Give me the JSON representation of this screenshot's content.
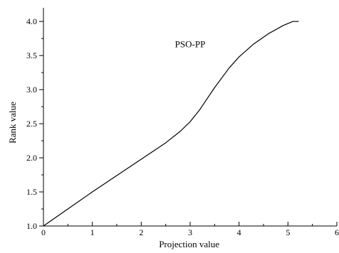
{
  "chart_data": {
    "type": "line",
    "title": "",
    "xlabel": "Projection value",
    "ylabel": "Rank value",
    "xlim": [
      0,
      6
    ],
    "ylim": [
      1.0,
      4.2
    ],
    "x_ticks": [
      "0",
      "1",
      "2",
      "3",
      "4",
      "5",
      "6"
    ],
    "y_ticks": [
      "1.0",
      "1.5",
      "2.0",
      "2.5",
      "3.0",
      "3.5",
      "4.0"
    ],
    "grid": false,
    "annotation": "PSO-PP",
    "series": [
      {
        "color": "#000000",
        "x": [
          0,
          0.5,
          1.0,
          1.5,
          2.0,
          2.5,
          2.8,
          3.0,
          3.2,
          3.5,
          3.8,
          4.0,
          4.3,
          4.6,
          4.9,
          5.1,
          5.22
        ],
        "y": [
          1.0,
          1.25,
          1.5,
          1.74,
          1.98,
          2.22,
          2.39,
          2.53,
          2.71,
          3.03,
          3.32,
          3.48,
          3.67,
          3.82,
          3.94,
          4.0,
          4.0
        ]
      }
    ]
  }
}
